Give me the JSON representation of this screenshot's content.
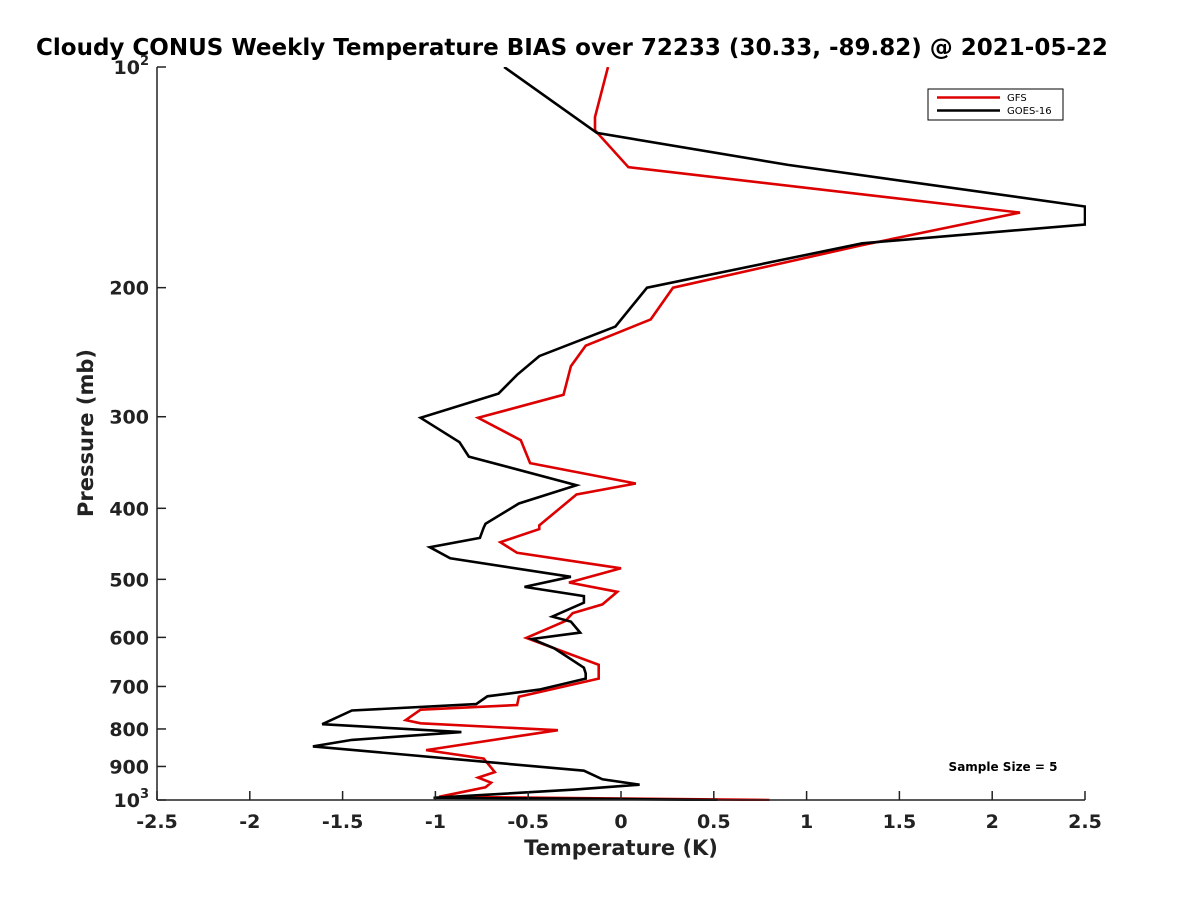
{
  "chart_data": {
    "type": "line",
    "title": "Cloudy CONUS Weekly Temperature BIAS over 72233 (30.33, -89.82) @ 2021-05-22",
    "xlabel": "Temperature (K)",
    "ylabel": "Pressure (mb)",
    "xlim": [
      -2.5,
      2.5
    ],
    "ylim": [
      100,
      1000
    ],
    "y_scale": "log",
    "y_reversed": true,
    "x_ticks": [
      "-2.5",
      "-2",
      "-1.5",
      "-1",
      "-0.5",
      "0",
      "0.5",
      "1",
      "1.5",
      "2",
      "2.5"
    ],
    "x_tick_values": [
      -2.5,
      -2,
      -1.5,
      -1,
      -0.5,
      0,
      0.5,
      1,
      1.5,
      2,
      2.5
    ],
    "y_ticks": [
      {
        "value": 100,
        "base": "10",
        "exp": "2"
      },
      {
        "value": 200,
        "label": "200"
      },
      {
        "value": 300,
        "label": "300"
      },
      {
        "value": 400,
        "label": "400"
      },
      {
        "value": 500,
        "label": "500"
      },
      {
        "value": 600,
        "label": "600"
      },
      {
        "value": 700,
        "label": "700"
      },
      {
        "value": 800,
        "label": "800"
      },
      {
        "value": 900,
        "label": "900"
      },
      {
        "value": 1000,
        "base": "10",
        "exp": "3"
      }
    ],
    "legend": {
      "position": "top-right",
      "entries": [
        "GFS",
        "GOES-16"
      ]
    },
    "annotation": "Sample Size = 5",
    "series": [
      {
        "name": "GFS",
        "color": "#dd0000",
        "points": [
          [
            -0.07,
            100
          ],
          [
            -0.14,
            117
          ],
          [
            -0.14,
            122
          ],
          [
            0.04,
            137
          ],
          [
            2.15,
            158
          ],
          [
            1.3,
            175
          ],
          [
            0.28,
            200
          ],
          [
            0.16,
            221
          ],
          [
            -0.19,
            240
          ],
          [
            -0.27,
            256
          ],
          [
            -0.31,
            280
          ],
          [
            -0.77,
            301
          ],
          [
            -0.54,
            323
          ],
          [
            -0.49,
            347
          ],
          [
            0.08,
            370
          ],
          [
            -0.24,
            383
          ],
          [
            -0.44,
            422
          ],
          [
            -0.44,
            427
          ],
          [
            -0.65,
            445
          ],
          [
            -0.56,
            460
          ],
          [
            0.0,
            483
          ],
          [
            -0.28,
            505
          ],
          [
            -0.02,
            520
          ],
          [
            -0.1,
            541
          ],
          [
            -0.26,
            556
          ],
          [
            -0.3,
            570
          ],
          [
            -0.51,
            601
          ],
          [
            -0.12,
            654
          ],
          [
            -0.12,
            683
          ],
          [
            -0.55,
            723
          ],
          [
            -0.56,
            742
          ],
          [
            -1.08,
            753
          ],
          [
            -1.16,
            778
          ],
          [
            -1.08,
            786
          ],
          [
            -0.34,
            803
          ],
          [
            -1.05,
            855
          ],
          [
            -0.74,
            878
          ],
          [
            -0.68,
            916
          ],
          [
            -0.77,
            932
          ],
          [
            -0.7,
            947
          ],
          [
            -0.73,
            961
          ],
          [
            -0.98,
            990
          ],
          [
            0.5,
            998
          ],
          [
            0.8,
            1000
          ]
        ]
      },
      {
        "name": "GOES-16",
        "color": "#000000",
        "points": [
          [
            -0.63,
            100
          ],
          [
            -0.13,
            123
          ],
          [
            0.9,
            136
          ],
          [
            2.5,
            155
          ],
          [
            2.5,
            164
          ],
          [
            1.3,
            174
          ],
          [
            0.14,
            200
          ],
          [
            -0.03,
            226
          ],
          [
            -0.44,
            248
          ],
          [
            -0.56,
            263
          ],
          [
            -0.66,
            279
          ],
          [
            -1.08,
            301
          ],
          [
            -0.87,
            325
          ],
          [
            -0.82,
            340
          ],
          [
            -0.24,
            372
          ],
          [
            -0.55,
            394
          ],
          [
            -0.73,
            420
          ],
          [
            -0.74,
            425
          ],
          [
            -0.76,
            439
          ],
          [
            -1.03,
            452
          ],
          [
            -0.92,
            468
          ],
          [
            -0.27,
            496
          ],
          [
            -0.52,
            512
          ],
          [
            -0.2,
            527
          ],
          [
            -0.2,
            538
          ],
          [
            -0.37,
            562
          ],
          [
            -0.27,
            571
          ],
          [
            -0.22,
            591
          ],
          [
            -0.48,
            603
          ],
          [
            -0.36,
            621
          ],
          [
            -0.2,
            660
          ],
          [
            -0.19,
            672
          ],
          [
            -0.19,
            683
          ],
          [
            -0.44,
            707
          ],
          [
            -0.72,
            722
          ],
          [
            -0.78,
            740
          ],
          [
            -1.45,
            755
          ],
          [
            -1.61,
            788
          ],
          [
            -0.86,
            808
          ],
          [
            -1.45,
            828
          ],
          [
            -1.66,
            845
          ],
          [
            -0.2,
            912
          ],
          [
            -0.1,
            937
          ],
          [
            0.1,
            953
          ],
          [
            -0.25,
            968
          ],
          [
            -1.01,
            993
          ],
          [
            -0.2,
            996
          ],
          [
            0.52,
            1000
          ]
        ]
      }
    ]
  }
}
